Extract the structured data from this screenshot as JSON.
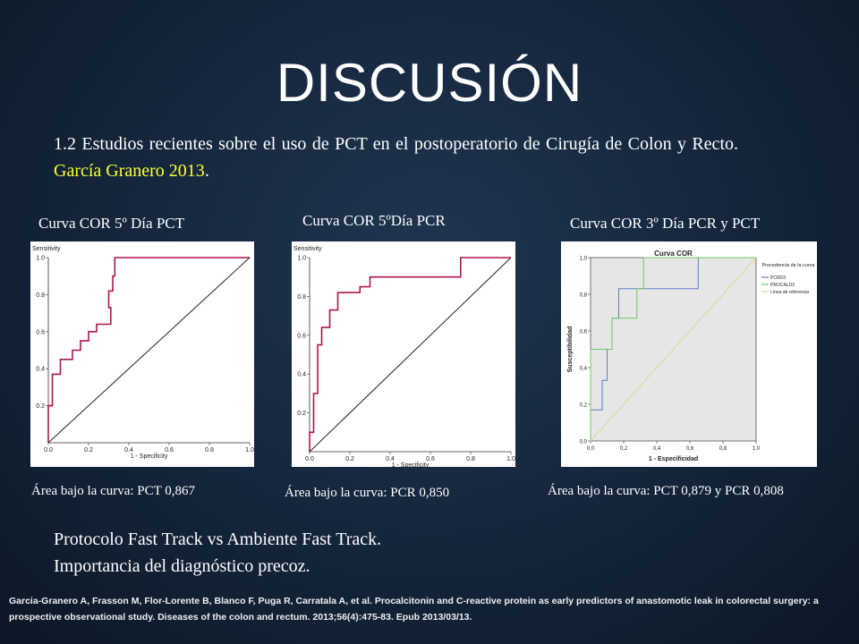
{
  "slide": {
    "title": "DISCUSIÓN",
    "intro_text": "1.2 Estudios recientes sobre el uso de PCT en el postoperatorio de Cirugía de Colon y Recto. ",
    "intro_highlight": "García Granero 2013",
    "intro_end": ".",
    "bottom_line1": "Protocolo Fast Track vs Ambiente Fast Track.",
    "bottom_line2": "Importancia del diagnóstico precoz.",
    "reference": "Garcia-Granero A, Frasson M, Flor-Lorente B, Blanco F, Puga R, Carratala A, et al. Procalcitonin and C-reactive protein as early predictors of anastomotic leak in colorectal surgery: a prospective observational study. Diseases of the colon and rectum. 2013;56(4):475-83. Epub 2013/03/13.",
    "highlight_color": "#ffff33"
  },
  "captions": [
    "Curva COR 5º Día PCT",
    "Curva COR 5ºDía PCR",
    "Curva COR 3º Día PCR y PCT"
  ],
  "areas": [
    {
      "label": "Área bajo la curva: ",
      "value": "PCT 0,867"
    },
    {
      "label": "Área bajo la curva: ",
      "value": "PCR 0,850"
    },
    {
      "label": "Área bajo la curva: ",
      "value": "PCT 0,879 y PCR 0,808"
    }
  ],
  "chart_data": [
    {
      "type": "line",
      "ylabel": "Sensitivity",
      "xlabel": "1 - Specificity",
      "xlim": [
        0,
        1
      ],
      "ylim": [
        0,
        1
      ],
      "x_ticks": [
        "0.0",
        "0.2",
        "0.4",
        "0.6",
        "0.8",
        "1.0"
      ],
      "y_ticks": [
        "0.2",
        "0.4",
        "0.6",
        "0.8",
        "1.0"
      ],
      "line_color": "#b0154a",
      "series": [
        {
          "x": [
            0,
            0,
            0.02,
            0.02,
            0.06,
            0.06,
            0.12,
            0.12,
            0.16,
            0.16,
            0.2,
            0.2,
            0.24,
            0.24,
            0.26,
            0.26,
            0.31,
            0.31,
            0.3,
            0.3,
            0.32,
            0.32,
            0.33,
            0.33,
            1.0
          ],
          "y": [
            0,
            0.2,
            0.2,
            0.37,
            0.37,
            0.45,
            0.45,
            0.5,
            0.5,
            0.55,
            0.55,
            0.6,
            0.6,
            0.64,
            0.64,
            0.64,
            0.64,
            0.73,
            0.73,
            0.82,
            0.82,
            0.9,
            0.9,
            1.0,
            1.0
          ]
        },
        {
          "x": [
            0,
            1
          ],
          "y": [
            0,
            1
          ]
        }
      ]
    },
    {
      "type": "line",
      "ylabel": "Sensitivity",
      "xlabel": "1 - Specificity",
      "xlim": [
        0,
        1
      ],
      "ylim": [
        0,
        1
      ],
      "x_ticks": [
        "0.0",
        "0.2",
        "0.4",
        "0.6",
        "0.8",
        "1.0"
      ],
      "y_ticks": [
        "0.2",
        "0.4",
        "0.6",
        "0.8",
        "1.0"
      ],
      "line_color": "#b0154a",
      "series": [
        {
          "x": [
            0,
            0,
            0.02,
            0.02,
            0.04,
            0.04,
            0.06,
            0.06,
            0.1,
            0.1,
            0.14,
            0.14,
            0.25,
            0.25,
            0.3,
            0.3,
            0.75,
            0.75,
            1.0
          ],
          "y": [
            0,
            0.1,
            0.1,
            0.3,
            0.3,
            0.55,
            0.55,
            0.64,
            0.64,
            0.73,
            0.73,
            0.82,
            0.82,
            0.85,
            0.85,
            0.9,
            0.9,
            1.0,
            1.0
          ]
        },
        {
          "x": [
            0,
            1
          ],
          "y": [
            0,
            1
          ]
        }
      ]
    },
    {
      "type": "line",
      "title": "Curva COR",
      "ylabel": "Susceptibilidad",
      "xlabel": "1 - Especificidad",
      "xlim": [
        0,
        1
      ],
      "ylim": [
        0,
        1
      ],
      "x_ticks": [
        "0,0",
        "0,2",
        "0,4",
        "0,6",
        "0,8",
        "1,0"
      ],
      "y_ticks": [
        "0,0",
        "0,2",
        "0,4",
        "0,6",
        "0,8",
        "1,0"
      ],
      "legend_title": "Procedencia de la curva",
      "legend_position": "right",
      "series": [
        {
          "name": "PCRD3",
          "color": "#5b7fc8",
          "x": [
            0,
            0,
            0.07,
            0.07,
            0.1,
            0.1,
            0.13,
            0.13,
            0.17,
            0.17,
            0.3,
            0.3,
            0.65,
            0.65,
            1.0
          ],
          "y": [
            0,
            0.17,
            0.17,
            0.33,
            0.33,
            0.5,
            0.5,
            0.67,
            0.67,
            0.83,
            0.83,
            0.83,
            0.83,
            1.0,
            1.0
          ]
        },
        {
          "name": "PROCALD3",
          "color": "#6ec865",
          "x": [
            0,
            0,
            0.13,
            0.13,
            0.17,
            0.17,
            0.28,
            0.28,
            0.32,
            0.32,
            1.0
          ],
          "y": [
            0,
            0.5,
            0.5,
            0.67,
            0.67,
            0.67,
            0.67,
            0.83,
            0.83,
            1.0,
            1.0
          ]
        },
        {
          "name": "Línea de referencia",
          "color": "#e2d59a",
          "x": [
            0,
            1
          ],
          "y": [
            0,
            1
          ]
        }
      ]
    }
  ]
}
